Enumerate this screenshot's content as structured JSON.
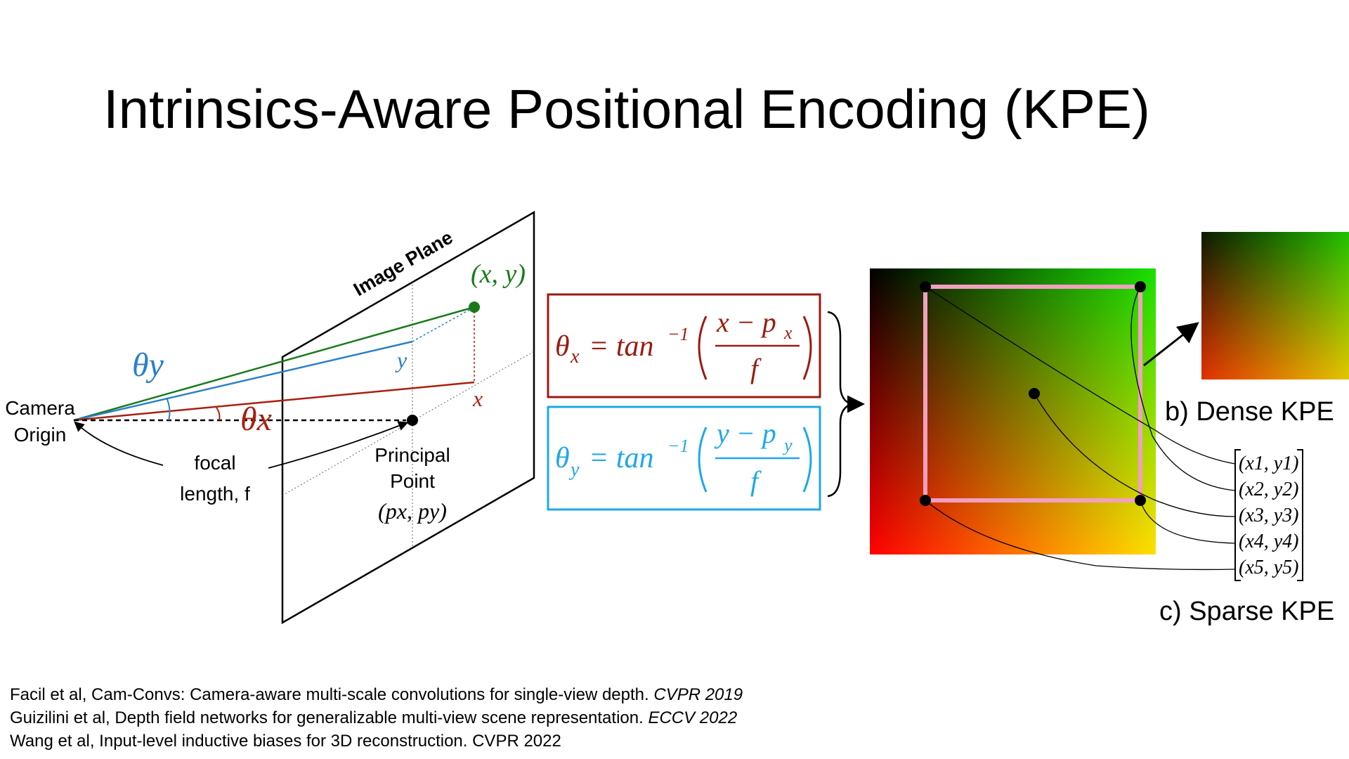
{
  "slide": {
    "title": "Intrinsics-Aware Positional Encoding (KPE)"
  },
  "diagram": {
    "image_plane_label": "Image Plane",
    "point_label": "(x, y)",
    "theta_y_label": "θy",
    "theta_x_label": "θx",
    "y_label": "y",
    "x_label": "x",
    "camera_label_1": "Camera",
    "camera_label_2": "Origin",
    "focal_label_1": "focal",
    "focal_label_2": "length, f",
    "principal_label_1": "Principal",
    "principal_label_2": "Point",
    "principal_label_3": "(px, py)"
  },
  "equations": {
    "theta_x": "θx = tan⁻¹((x − px) / f)",
    "theta_y": "θy = tan⁻¹((y − py) / f)"
  },
  "kpe": {
    "dense_label": "b) Dense KPE",
    "sparse_label": "c) Sparse KPE",
    "sparse_points": [
      "(x1, y1)",
      "(x2, y2)",
      "(x3, y3)",
      "(x4, y4)",
      "(x5, y5)"
    ]
  },
  "references": [
    {
      "text": "Facil et al,  Cam-Convs: Camera-aware multi-scale convolutions for single-view depth. ",
      "venue": "CVPR 2019"
    },
    {
      "text": "Guizilini et al, Depth field networks for generalizable multi-view scene representation. ",
      "venue": "ECCV 2022"
    },
    {
      "text": "Wang et al, Input-level inductive biases for 3D reconstruction. CVPR 2022",
      "venue": ""
    }
  ],
  "colors": {
    "green": "#1a7a1a",
    "blue": "#2a7fc8",
    "red": "#a82010",
    "box_red": "#9a1b10",
    "box_blue": "#1ea8e8",
    "pink": "#f2a0c0"
  }
}
